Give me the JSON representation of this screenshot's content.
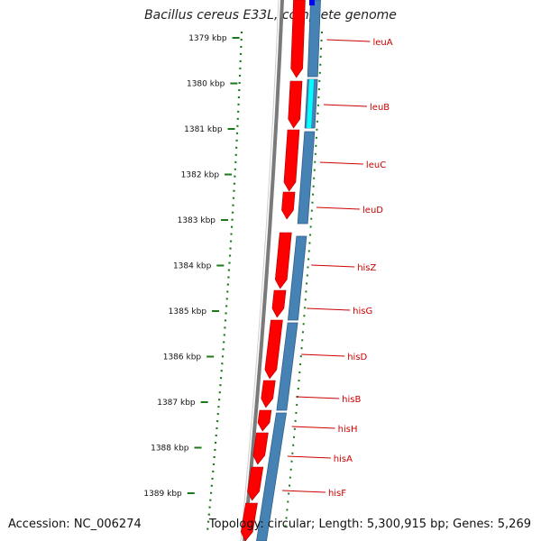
{
  "title": "Bacillus cereus E33L, complete genome",
  "footer": {
    "accession": "Accession: NC_006274",
    "stats": "Topology: circular; Length: 5,300,915 bp; Genes: 5,269"
  },
  "colors": {
    "forward_cds": "#ff0000",
    "reverse_cds": "#4682b4",
    "highlight": "#00ffff",
    "backbone": "#7a7a7a",
    "ticks": "#1a7a1a",
    "label_line": "#cc0000"
  },
  "scale": {
    "unit": "kbp",
    "ticks": [
      "1379 kbp",
      "1380 kbp",
      "1381 kbp",
      "1382 kbp",
      "1383 kbp",
      "1384 kbp",
      "1385 kbp",
      "1386 kbp",
      "1387 kbp",
      "1388 kbp",
      "1389 kbp"
    ]
  },
  "genes": [
    "leuA",
    "leuB",
    "leuC",
    "leuD",
    "hisZ",
    "hisG",
    "hisD",
    "hisB",
    "hisH",
    "hisA",
    "hisF"
  ]
}
